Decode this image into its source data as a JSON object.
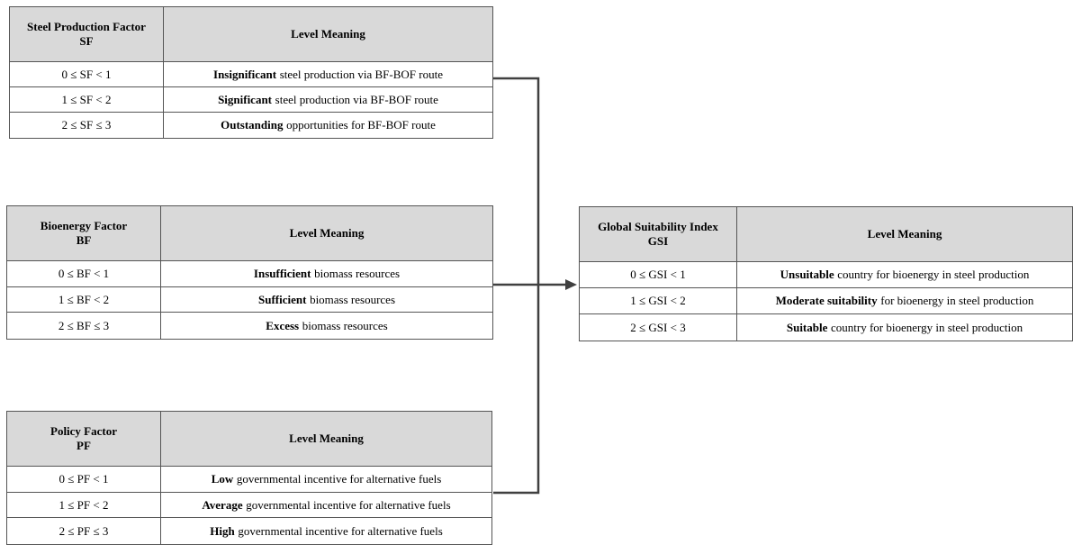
{
  "tables": [
    {
      "header": {
        "factor": [
          "Steel Production Factor",
          "SF"
        ],
        "meaning": "Level Meaning"
      },
      "rows": [
        {
          "range": "0 ≤ SF < 1",
          "bold": "Insignificant",
          "text": "steel production via BF-BOF route"
        },
        {
          "range": "1 ≤ SF < 2",
          "bold": "Significant",
          "text": "steel production via BF-BOF route"
        },
        {
          "range": "2 ≤ SF ≤ 3",
          "bold": "Outstanding",
          "text": "opportunities for BF-BOF route"
        }
      ]
    },
    {
      "header": {
        "factor": [
          "Bioenergy Factor",
          "BF"
        ],
        "meaning": "Level Meaning"
      },
      "rows": [
        {
          "range": "0 ≤ BF < 1",
          "bold": "Insufficient",
          "text": "biomass resources"
        },
        {
          "range": "1 ≤ BF < 2",
          "bold": "Sufficient",
          "text": "biomass resources"
        },
        {
          "range": "2 ≤ BF ≤ 3",
          "bold": "Excess",
          "text": "biomass resources"
        }
      ]
    },
    {
      "header": {
        "factor": [
          "Policy Factor",
          "PF"
        ],
        "meaning": "Level Meaning"
      },
      "rows": [
        {
          "range": "0 ≤ PF < 1",
          "bold": "Low",
          "text": "governmental incentive for alternative fuels"
        },
        {
          "range": "1 ≤ PF < 2",
          "bold": "Average",
          "text": "governmental incentive for alternative fuels"
        },
        {
          "range": "2 ≤ PF ≤ 3",
          "bold": "High",
          "text": "governmental incentive for alternative fuels"
        }
      ]
    },
    {
      "header": {
        "factor": [
          "Global Suitability Index",
          "GSI"
        ],
        "meaning": "Level Meaning"
      },
      "rows": [
        {
          "range": "0 ≤ GSI < 1",
          "bold": "Unsuitable",
          "text": "country for bioenergy in steel production"
        },
        {
          "range": "1 ≤ GSI < 2",
          "bold": "Moderate suitability",
          "text": "for bioenergy in steel production"
        },
        {
          "range": "2 ≤ GSI < 3",
          "bold": "Suitable",
          "text": "country for bioenergy in steel production"
        }
      ]
    }
  ]
}
